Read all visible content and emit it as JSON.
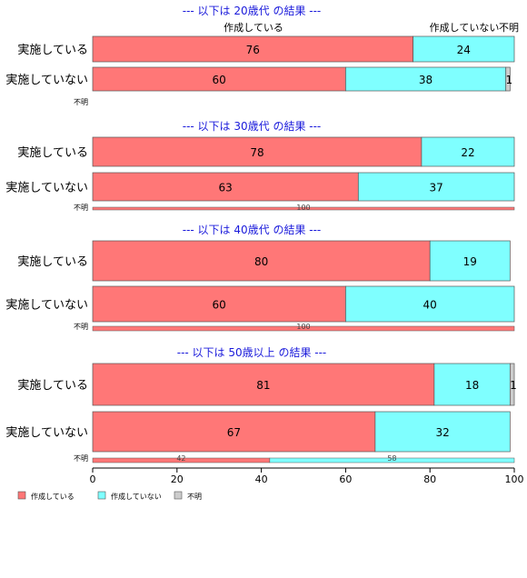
{
  "chart_data": {
    "type": "bar",
    "orientation": "horizontal",
    "stacked": "percent",
    "xlim": [
      0,
      100
    ],
    "xticks": [
      0,
      20,
      40,
      60,
      80,
      100
    ],
    "legend_position": "bottom-left",
    "colors": [
      "#FF7777",
      "#7FFFFF",
      "#CCCCCC"
    ],
    "legend": [
      "作成している",
      "作成していない",
      "不明"
    ],
    "column_headers": [
      "作成している",
      "作成していない",
      "不明"
    ],
    "panels": [
      {
        "title": "--- 以下は 20歳代 の結果 ---",
        "rows": [
          {
            "label": "実施している",
            "values": [
              76,
              24,
              0
            ]
          },
          {
            "label": "実施していない",
            "values": [
              60,
              38,
              1
            ]
          },
          {
            "label": "不明",
            "values": [
              0,
              0,
              0
            ]
          }
        ]
      },
      {
        "title": "--- 以下は 30歳代 の結果 ---",
        "rows": [
          {
            "label": "実施している",
            "values": [
              78,
              22,
              0
            ]
          },
          {
            "label": "実施していない",
            "values": [
              63,
              37,
              0
            ]
          },
          {
            "label": "不明",
            "values": [
              100,
              0,
              0
            ]
          }
        ]
      },
      {
        "title": "--- 以下は 40歳代 の結果 ---",
        "rows": [
          {
            "label": "実施している",
            "values": [
              80,
              19,
              0
            ]
          },
          {
            "label": "実施していない",
            "values": [
              60,
              40,
              0
            ]
          },
          {
            "label": "不明",
            "values": [
              100,
              0,
              0
            ]
          }
        ]
      },
      {
        "title": "--- 以下は 50歳以上 の結果 ---",
        "rows": [
          {
            "label": "実施している",
            "values": [
              81,
              18,
              1
            ]
          },
          {
            "label": "実施していない",
            "values": [
              67,
              32,
              0
            ]
          },
          {
            "label": "不明",
            "values": [
              42,
              58,
              0
            ]
          }
        ]
      }
    ]
  }
}
